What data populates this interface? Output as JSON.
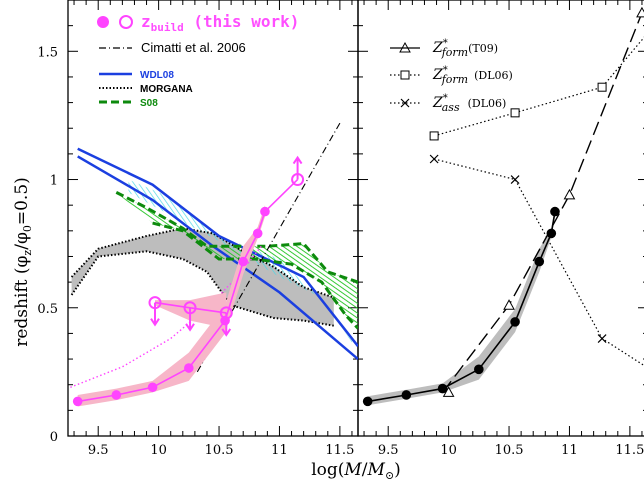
{
  "labels": {
    "ylabel": "redshift (φ_z/φ_0=0.5)",
    "xlabel": "log(M/M_⊙)"
  },
  "legend_left": {
    "zbuild": "z_build (this work)",
    "cimatti": "Cimatti et al. 2006",
    "wdl08": "WDL08",
    "morgana": "MORGANA",
    "s08": "S08"
  },
  "legend_right": {
    "t09": "Z*_form(T09)",
    "dl06_form": "Z*_form (DL06)",
    "dl06_ass": "Z*_ass (DL06)"
  },
  "colors": {
    "magenta": "#ff44ff",
    "pink_band": "#f7b6c8",
    "blue": "#1b3fe0",
    "cyan_fill": "#7fe6ef",
    "green": "#0d8a0d",
    "green_fill": "#3cd63c",
    "gray_fill": "#bdbdbd",
    "black": "#000000"
  },
  "chart_data": [
    {
      "type": "line",
      "panel": "left",
      "xlim": [
        9.25,
        11.65
      ],
      "ylim": [
        0,
        1.7
      ],
      "x_ticks": [
        "9.5",
        "10",
        "10.5",
        "11",
        "11.5"
      ],
      "y_ticks": [
        "0",
        "0.5",
        "1",
        "1.5"
      ],
      "series": [
        {
          "name": "z_build (this work)",
          "style": "filled-circles",
          "x": [
            9.33,
            9.65,
            9.95,
            10.25,
            10.55,
            10.7,
            10.82,
            10.88
          ],
          "y": [
            0.135,
            0.16,
            0.19,
            0.265,
            0.45,
            0.68,
            0.79,
            0.875
          ]
        },
        {
          "name": "z_build (this work)",
          "style": "open-circles",
          "x": [
            9.97,
            10.26,
            10.56,
            11.15
          ],
          "y": [
            0.52,
            0.5,
            0.48,
            1.0
          ]
        },
        {
          "name": "Cimatti et al. 2006",
          "style": "dash-dot",
          "x": [
            10.32,
            11.5
          ],
          "y": [
            0.25,
            1.22
          ]
        },
        {
          "name": "Cimatti et al. 2006 (extrapolation)",
          "style": "dotted-magenta",
          "x": [
            9.27,
            9.7,
            10.1,
            10.4,
            10.65,
            10.85
          ],
          "y": [
            0.19,
            0.27,
            0.38,
            0.5,
            0.62,
            0.74
          ]
        },
        {
          "name": "WDL08 upper",
          "style": "blue",
          "x": [
            9.33,
            9.95,
            10.5,
            11.2,
            11.65
          ],
          "y": [
            1.12,
            0.98,
            0.78,
            0.62,
            0.35
          ]
        },
        {
          "name": "WDL08 lower",
          "style": "blue",
          "x": [
            9.33,
            9.95,
            10.45,
            11.0,
            11.65
          ],
          "y": [
            1.09,
            0.92,
            0.74,
            0.56,
            0.3
          ]
        },
        {
          "name": "S08 upper",
          "style": "green-dashed",
          "x": [
            9.65,
            9.9,
            10.2,
            10.4,
            10.6,
            10.9,
            11.2,
            11.4,
            11.65
          ],
          "y": [
            0.95,
            0.89,
            0.81,
            0.74,
            0.74,
            0.74,
            0.75,
            0.64,
            0.6
          ]
        },
        {
          "name": "S08 lower",
          "style": "green-dashed",
          "x": [
            9.95,
            10.2,
            10.5,
            10.8,
            11.1,
            11.35,
            11.55,
            11.65
          ],
          "y": [
            0.83,
            0.8,
            0.69,
            0.69,
            0.67,
            0.6,
            0.47,
            0.42
          ]
        },
        {
          "name": "MORGANA upper",
          "style": "black-dotted",
          "x": [
            9.28,
            9.5,
            9.9,
            10.2,
            10.45,
            10.7,
            10.95,
            11.2,
            11.45
          ],
          "y": [
            0.62,
            0.73,
            0.78,
            0.81,
            0.79,
            0.72,
            0.66,
            0.58,
            0.54
          ]
        },
        {
          "name": "MORGANA lower",
          "style": "black-dotted",
          "x": [
            9.28,
            9.5,
            9.9,
            10.2,
            10.4,
            10.6,
            10.95,
            11.2,
            11.45
          ],
          "y": [
            0.55,
            0.7,
            0.72,
            0.69,
            0.64,
            0.51,
            0.46,
            0.45,
            0.43
          ]
        }
      ]
    },
    {
      "type": "line",
      "panel": "right",
      "xlim": [
        9.25,
        11.65
      ],
      "ylim": [
        0,
        1.7
      ],
      "x_ticks": [
        "9.5",
        "10",
        "10.5",
        "11",
        "11.5"
      ],
      "series": [
        {
          "name": "Z*_form(T09)",
          "style": "long-dash-triangles",
          "x": [
            10.0,
            10.5,
            11.0,
            11.6
          ],
          "y": [
            0.17,
            0.51,
            0.94,
            1.65
          ]
        },
        {
          "name": "Z*_form (DL06)",
          "style": "dotted-squares",
          "x": [
            9.88,
            10.55,
            11.27,
            11.7
          ],
          "y": [
            1.17,
            1.26,
            1.36,
            1.6
          ]
        },
        {
          "name": "Z*_ass (DL06)",
          "style": "dotted-crosses",
          "x": [
            9.88,
            10.55,
            11.27,
            11.7
          ],
          "y": [
            1.08,
            1.0,
            0.38,
            0.25
          ]
        },
        {
          "name": "this work (black)",
          "style": "filled-circles",
          "x": [
            9.33,
            9.65,
            9.95,
            10.25,
            10.55,
            10.75,
            10.85,
            10.88
          ],
          "y": [
            0.135,
            0.16,
            0.185,
            0.26,
            0.445,
            0.68,
            0.79,
            0.875
          ]
        }
      ]
    }
  ]
}
